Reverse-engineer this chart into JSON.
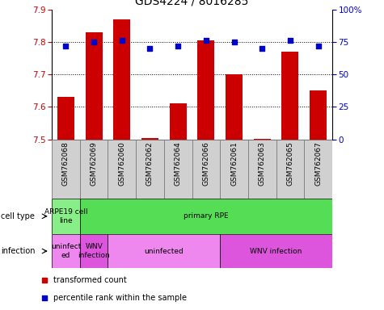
{
  "title": "GDS4224 / 8016285",
  "samples": [
    "GSM762068",
    "GSM762069",
    "GSM762060",
    "GSM762062",
    "GSM762064",
    "GSM762066",
    "GSM762061",
    "GSM762063",
    "GSM762065",
    "GSM762067"
  ],
  "transformed_counts": [
    7.63,
    7.83,
    7.87,
    7.505,
    7.61,
    7.805,
    7.7,
    7.503,
    7.77,
    7.65
  ],
  "percentile_ranks": [
    72,
    75,
    76,
    70,
    72,
    76,
    75,
    70,
    76,
    72
  ],
  "ylim_left": [
    7.5,
    7.9
  ],
  "ylim_right": [
    0,
    100
  ],
  "yticks_left": [
    7.5,
    7.6,
    7.7,
    7.8,
    7.9
  ],
  "yticks_right": [
    0,
    25,
    50,
    75,
    100
  ],
  "ytick_right_labels": [
    "0",
    "25",
    "50",
    "75",
    "100%"
  ],
  "bar_color": "#cc0000",
  "dot_color": "#0000cc",
  "cell_type_groups": [
    {
      "text": "ARPE19 cell\nline",
      "start": 0,
      "end": 0,
      "color": "#88ee88"
    },
    {
      "text": "primary RPE",
      "start": 1,
      "end": 9,
      "color": "#55dd55"
    }
  ],
  "infection_groups": [
    {
      "text": "uninfect\ned",
      "start": 0,
      "end": 0,
      "color": "#ee88ee"
    },
    {
      "text": "WNV\ninfection",
      "start": 1,
      "end": 1,
      "color": "#dd55dd"
    },
    {
      "text": "uninfected",
      "start": 2,
      "end": 5,
      "color": "#ee88ee"
    },
    {
      "text": "WNV infection",
      "start": 6,
      "end": 9,
      "color": "#dd55dd"
    }
  ],
  "legend_items": [
    {
      "label": "transformed count",
      "color": "#cc0000"
    },
    {
      "label": "percentile rank within the sample",
      "color": "#0000cc"
    }
  ],
  "cell_type_row_label": "cell type",
  "infection_row_label": "infection",
  "bar_bottom": 7.5,
  "tick_color_left": "#cc0000",
  "tick_color_right": "#0000cc",
  "title_fontsize": 10,
  "tick_fontsize": 7.5,
  "label_fontsize": 7,
  "xtick_fontsize": 6.5,
  "row_fontsize": 6.5,
  "legend_fontsize": 7
}
